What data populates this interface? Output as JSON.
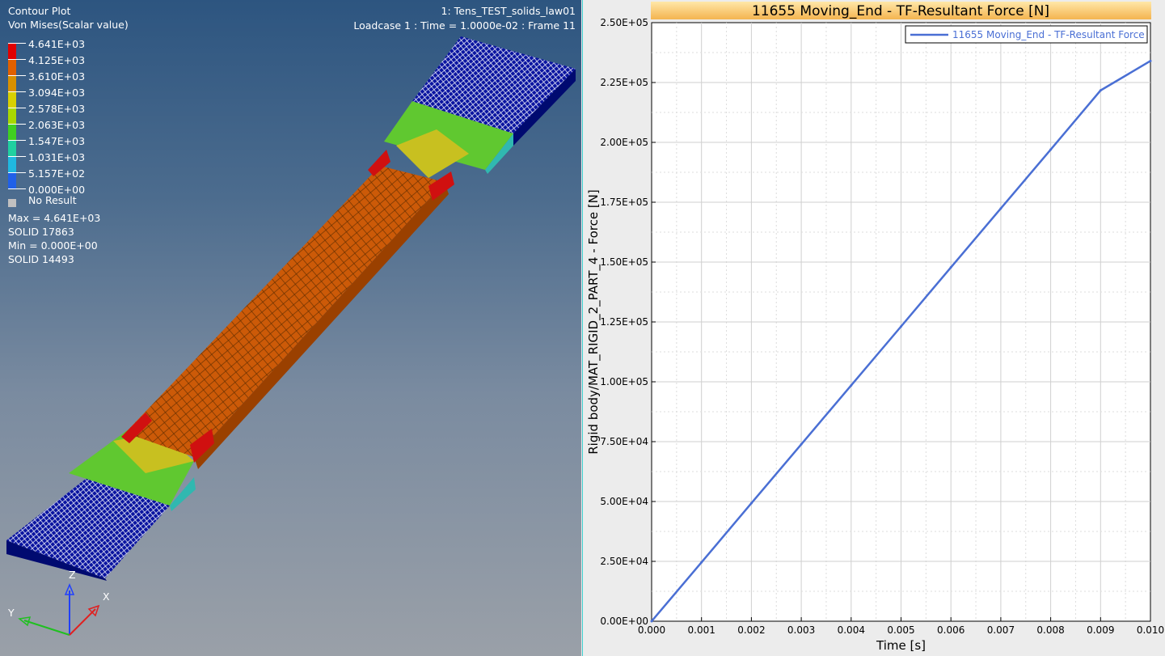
{
  "model_view": {
    "plot_title": "Contour Plot",
    "result_type": "Von Mises(Scalar value)",
    "model_name": "1: Tens_TEST_solids_law01",
    "loadcase_info": "Loadcase 1 : Time = 1.0000e-02 : Frame 11",
    "legend": {
      "levels": [
        "4.641E+03",
        "4.125E+03",
        "3.610E+03",
        "3.094E+03",
        "2.578E+03",
        "2.063E+03",
        "1.547E+03",
        "1.031E+03",
        "5.157E+02",
        "0.000E+00"
      ],
      "colors": [
        "#e00000",
        "#e06000",
        "#d89000",
        "#d8d000",
        "#a8d800",
        "#40d020",
        "#20d0a0",
        "#20b8e0",
        "#2060e8",
        "#0000b0"
      ],
      "no_result_label": "No Result",
      "no_result_color": "#c0c0c0"
    },
    "max_label": "Max =  4.641E+03",
    "max_entity": "SOLID 17863",
    "min_label": "Min =  0.000E+00",
    "min_entity": "SOLID 14493",
    "triad": {
      "z": "Z",
      "y": "Y",
      "x": "X"
    }
  },
  "chart_data": {
    "type": "line",
    "title": "11655 Moving_End - TF-Resultant Force [N]",
    "xlabel": "Time [s]",
    "ylabel": "Rigid body/MAT_RIGID_2_PART_4 - Force [N]",
    "xlim": [
      0,
      0.01
    ],
    "ylim": [
      0,
      250000
    ],
    "x_ticks": [
      "0.000",
      "0.001",
      "0.002",
      "0.003",
      "0.004",
      "0.005",
      "0.006",
      "0.007",
      "0.008",
      "0.009",
      "0.010"
    ],
    "y_ticks": [
      "0.00E+00",
      "2.50E+04",
      "5.00E+04",
      "7.50E+04",
      "1.00E+05",
      "1.25E+05",
      "1.50E+05",
      "1.75E+05",
      "2.00E+05",
      "2.25E+05",
      "2.50E+05"
    ],
    "grid": true,
    "legend_position": "top-right",
    "series": [
      {
        "name": "11655 Moving_End - TF-Resultant Force",
        "color": "#4a6fd4",
        "x": [
          0,
          0.001,
          0.002,
          0.003,
          0.004,
          0.005,
          0.006,
          0.007,
          0.008,
          0.009,
          0.01
        ],
        "y": [
          0,
          24600,
          49300,
          73900,
          98500,
          123100,
          147800,
          172400,
          197000,
          221700,
          234000
        ]
      }
    ]
  }
}
